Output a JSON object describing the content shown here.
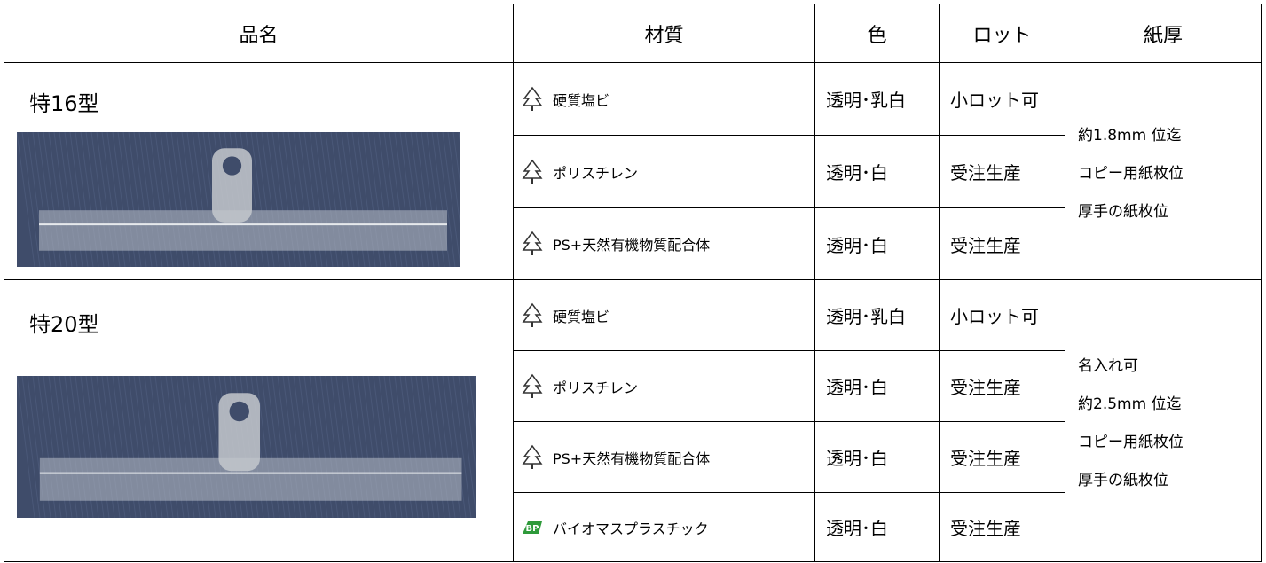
{
  "header": [
    "品名",
    "材質",
    "色",
    "ロット",
    "紙厚"
  ],
  "groups": [
    {
      "name": "特16型",
      "rows": [
        {
          "material": "硬質塩ビ",
          "color": "透明･乳白",
          "lot": "小ロット可"
        },
        {
          "material": "ポリスチレン",
          "color": "透明･白",
          "lot": "受注生産"
        },
        {
          "material": "PS+天然有機物質配合体",
          "color": "透明･白",
          "lot": "受注生産"
        }
      ],
      "paper": [
        "約1.8mm 位迄",
        "コピー用紙枚位",
        "厚手の紙枚位"
      ]
    },
    {
      "name": "特20型",
      "rows": [
        {
          "material": "硬質塩ビ",
          "color": "透明･乳白",
          "lot": "小ロット可"
        },
        {
          "material": "ポリスチレン",
          "color": "透明･白",
          "lot": "受注生産"
        },
        {
          "material": "PS+天然有機物質配合体",
          "color": "透明･白",
          "lot": "受注生産"
        },
        {
          "material": "バイオマスプラスチック",
          "color": "透明･白",
          "lot": "受注生産",
          "logo": "BP"
        }
      ],
      "paper": [
        "名入れ可",
        "約2.5mm 位迄",
        "コピー用紙枚位",
        "厚手の紙枚位"
      ]
    }
  ]
}
